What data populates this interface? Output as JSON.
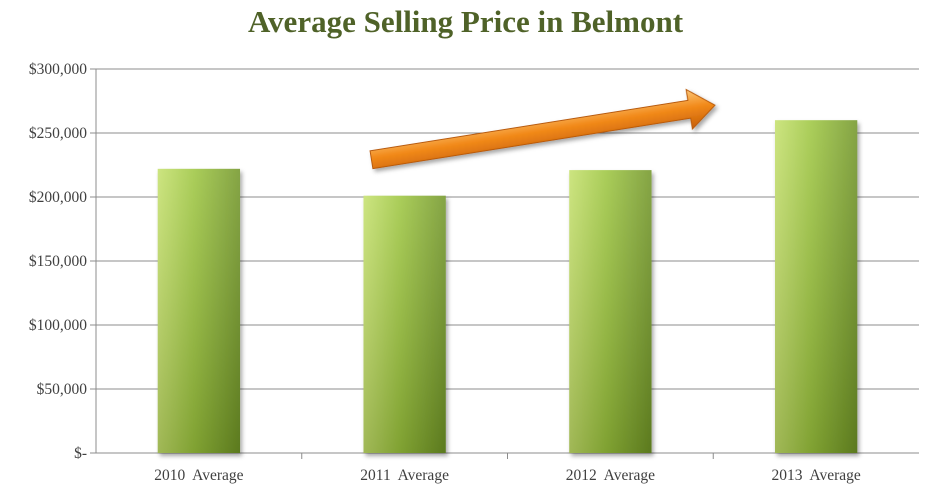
{
  "chart_data": {
    "type": "bar",
    "title": "Average Selling Price in Belmont",
    "xlabel": "",
    "ylabel": "",
    "categories": [
      "2010  Average",
      "2011  Average",
      "2012  Average",
      "2013  Average"
    ],
    "values": [
      222000,
      201000,
      221000,
      260000
    ],
    "ylim": [
      0,
      300000
    ],
    "yticks": [
      0,
      50000,
      100000,
      150000,
      200000,
      250000,
      300000
    ],
    "ytick_labels": [
      "$-",
      "$50,000",
      "$100,000",
      "$150,000",
      "$200,000",
      "$250,000",
      "$300,000"
    ],
    "grid": true,
    "legend": "none",
    "colors": {
      "bar_light": "#c4e06a",
      "bar_mid": "#9bc43c",
      "bar_dark": "#6f9425",
      "title": "#4f6228",
      "arrow": "#f28a1a",
      "gridline": "#8c8c8c",
      "axis_text": "#404040"
    },
    "annotation": {
      "type": "trend-arrow",
      "direction": "upward",
      "from_category": "2011  Average",
      "to_category": "2013  Average"
    }
  }
}
